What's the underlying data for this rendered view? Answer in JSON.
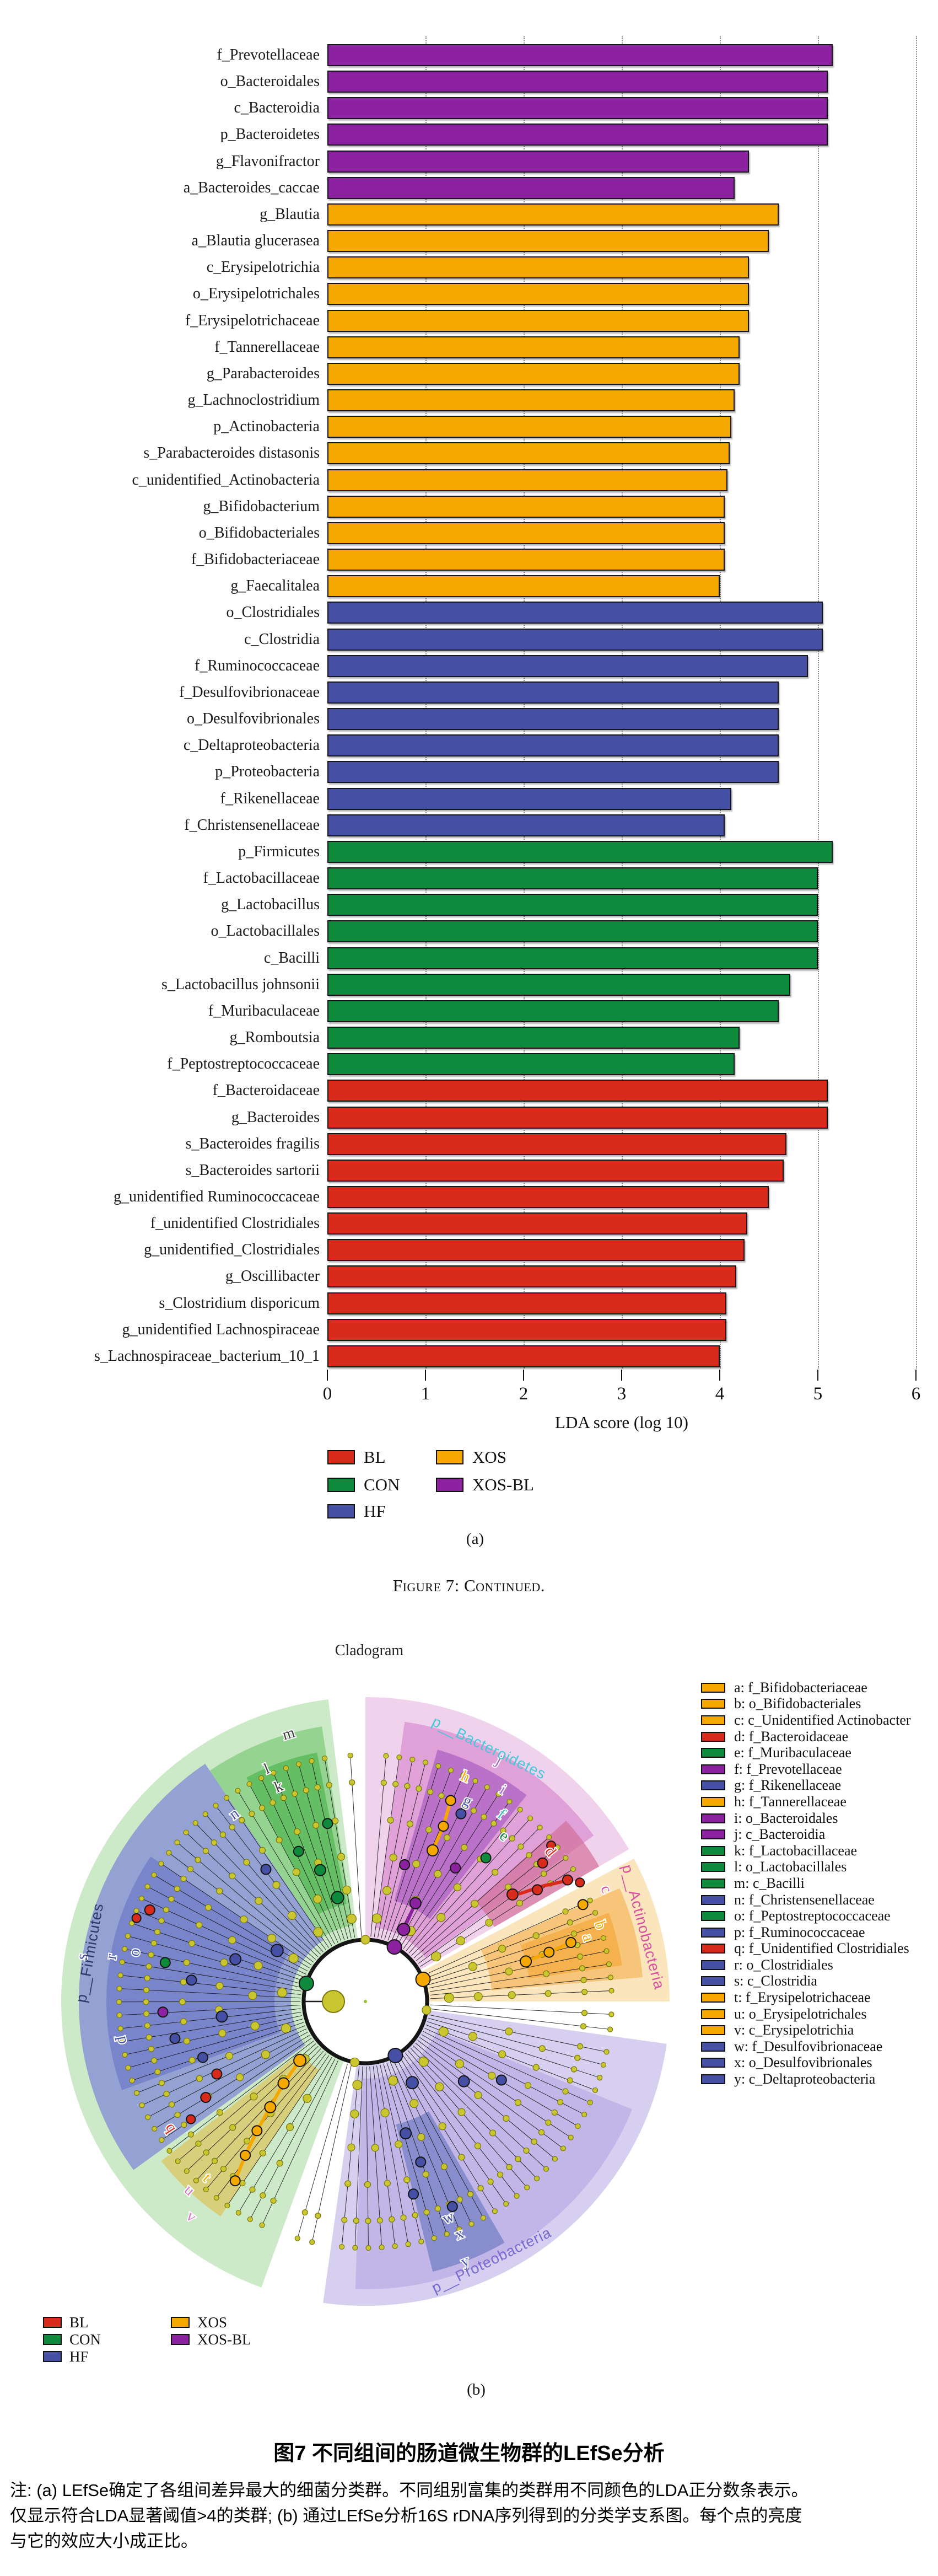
{
  "figure": {
    "panel_a_label": "(a)",
    "panel_b_label": "(b)",
    "continued_caption": "Figure 7: Continued.",
    "caption_zh": "图7 不同组间的肠道微生物群的LEfSe分析",
    "note_lines": [
      "注: (a) LEfSe确定了各组间差异最大的细菌分类群。不同组别富集的类群用不同颜色的LDA正分数条表示。",
      "仅显示符合LDA显著阈值>4的类群; (b) 通过LEfSe分析16S  rDNA序列得到的分类学支系图。每个点的亮度",
      "与它的效应大小成正比。"
    ]
  },
  "chart_data": {
    "type": "bar",
    "orientation": "horizontal",
    "title": "",
    "xlabel": "LDA score (log 10)",
    "xlim": [
      0,
      6
    ],
    "xticks": [
      0,
      1,
      2,
      3,
      4,
      5,
      6
    ],
    "grid": "dotted-vertical",
    "legend_position": "bottom-left",
    "groups": [
      {
        "name": "BL",
        "color": "#d92b1c"
      },
      {
        "name": "CON",
        "color": "#0e8a3c"
      },
      {
        "name": "HF",
        "color": "#4550a5"
      },
      {
        "name": "XOS",
        "color": "#f5a800"
      },
      {
        "name": "XOS-BL",
        "color": "#8c22a0"
      }
    ],
    "bars": [
      {
        "label": "f_Prevotellaceae",
        "value": 5.15,
        "group": "XOS-BL"
      },
      {
        "label": "o_Bacteroidales",
        "value": 5.1,
        "group": "XOS-BL"
      },
      {
        "label": "c_Bacteroidia",
        "value": 5.1,
        "group": "XOS-BL"
      },
      {
        "label": "p_Bacteroidetes",
        "value": 5.1,
        "group": "XOS-BL"
      },
      {
        "label": "g_Flavonifractor",
        "value": 4.3,
        "group": "XOS-BL"
      },
      {
        "label": "a_Bacteroides_caccae",
        "value": 4.15,
        "group": "XOS-BL"
      },
      {
        "label": "g_Blautia",
        "value": 4.6,
        "group": "XOS"
      },
      {
        "label": "a_Blautia glucerasea",
        "value": 4.5,
        "group": "XOS"
      },
      {
        "label": "c_Erysipelotrichia",
        "value": 4.3,
        "group": "XOS"
      },
      {
        "label": "o_Erysipelotrichales",
        "value": 4.3,
        "group": "XOS"
      },
      {
        "label": "f_Erysipelotrichaceae",
        "value": 4.3,
        "group": "XOS"
      },
      {
        "label": "f_Tannerellaceae",
        "value": 4.2,
        "group": "XOS"
      },
      {
        "label": "g_Parabacteroides",
        "value": 4.2,
        "group": "XOS"
      },
      {
        "label": "g_Lachnoclostridium",
        "value": 4.15,
        "group": "XOS"
      },
      {
        "label": "p_Actinobacteria",
        "value": 4.12,
        "group": "XOS"
      },
      {
        "label": "s_Parabacteroides distasonis",
        "value": 4.1,
        "group": "XOS"
      },
      {
        "label": "c_unidentified_Actinobacteria",
        "value": 4.08,
        "group": "XOS"
      },
      {
        "label": "g_Bifidobacterium",
        "value": 4.05,
        "group": "XOS"
      },
      {
        "label": "o_Bifidobacteriales",
        "value": 4.05,
        "group": "XOS"
      },
      {
        "label": "f_Bifidobacteriaceae",
        "value": 4.05,
        "group": "XOS"
      },
      {
        "label": "g_Faecalitalea",
        "value": 4.0,
        "group": "XOS"
      },
      {
        "label": "o_Clostridiales",
        "value": 5.05,
        "group": "HF"
      },
      {
        "label": "c_Clostridia",
        "value": 5.05,
        "group": "HF"
      },
      {
        "label": "f_Ruminococcaceae",
        "value": 4.9,
        "group": "HF"
      },
      {
        "label": "f_Desulfovibrionaceae",
        "value": 4.6,
        "group": "HF"
      },
      {
        "label": "o_Desulfovibrionales",
        "value": 4.6,
        "group": "HF"
      },
      {
        "label": "c_Deltaproteobacteria",
        "value": 4.6,
        "group": "HF"
      },
      {
        "label": "p_Proteobacteria",
        "value": 4.6,
        "group": "HF"
      },
      {
        "label": "f_Rikenellaceae",
        "value": 4.12,
        "group": "HF"
      },
      {
        "label": "f_Christensenellaceae",
        "value": 4.05,
        "group": "HF"
      },
      {
        "label": "p_Firmicutes",
        "value": 5.15,
        "group": "CON"
      },
      {
        "label": "f_Lactobacillaceae",
        "value": 5.0,
        "group": "CON"
      },
      {
        "label": "g_Lactobacillus",
        "value": 5.0,
        "group": "CON"
      },
      {
        "label": "o_Lactobacillales",
        "value": 5.0,
        "group": "CON"
      },
      {
        "label": "c_Bacilli",
        "value": 5.0,
        "group": "CON"
      },
      {
        "label": "s_Lactobacillus johnsonii",
        "value": 4.72,
        "group": "CON"
      },
      {
        "label": "f_Muribaculaceae",
        "value": 4.6,
        "group": "CON"
      },
      {
        "label": "g_Romboutsia",
        "value": 4.2,
        "group": "CON"
      },
      {
        "label": "f_Peptostreptococcaceae",
        "value": 4.15,
        "group": "CON"
      },
      {
        "label": "f_Bacteroidaceae",
        "value": 5.1,
        "group": "BL"
      },
      {
        "label": "g_Bacteroides",
        "value": 5.1,
        "group": "BL"
      },
      {
        "label": "s_Bacteroides fragilis",
        "value": 4.68,
        "group": "BL"
      },
      {
        "label": "s_Bacteroides sartorii",
        "value": 4.65,
        "group": "BL"
      },
      {
        "label": "g_unidentified Ruminococcaceae",
        "value": 4.5,
        "group": "BL"
      },
      {
        "label": "f_unidentified Clostridiales",
        "value": 4.28,
        "group": "BL"
      },
      {
        "label": "g_unidentified_Clostridiales",
        "value": 4.25,
        "group": "BL"
      },
      {
        "label": "g_Oscillibacter",
        "value": 4.17,
        "group": "BL"
      },
      {
        "label": "s_Clostridium disporicum",
        "value": 4.07,
        "group": "BL"
      },
      {
        "label": "g_unidentified Lachnospiraceae",
        "value": 4.07,
        "group": "BL"
      },
      {
        "label": "s_Lachnospiraceae_bacterium_10_1",
        "value": 4.0,
        "group": "BL"
      }
    ]
  },
  "cladogram": {
    "title": "Cladogram",
    "palette": {
      "red": "#d92b1c",
      "green": "#0e8a3c",
      "blue": "#4550a5",
      "orange": "#f5a800",
      "purple": "#8c22a0",
      "yellow": "#c9c62f",
      "yellow_border": "#7a770f"
    },
    "phyla": [
      {
        "name": "p__Firmicutes",
        "label_color": "#2b3a66",
        "label_angle": 170,
        "label_r": 508,
        "a0": 97,
        "a1": 250,
        "fill": "#cdeac8",
        "node_angle": 163,
        "node_color": "green",
        "subs": [
          {
            "a0": 99,
            "a1": 124,
            "r0": 140,
            "r1": 505,
            "fill": "#8fd289",
            "op": 0.9
          },
          {
            "a0": 101,
            "a1": 118,
            "r0": 180,
            "r1": 460,
            "fill": "#57b857",
            "op": 0.8
          },
          {
            "a0": 124,
            "a1": 216,
            "r0": 135,
            "r1": 520,
            "fill": "#8d99d4",
            "op": 0.9
          },
          {
            "a0": 146,
            "a1": 200,
            "r0": 165,
            "r1": 470,
            "fill": "#6f7cc7",
            "op": 0.75
          },
          {
            "a0": 218,
            "a1": 236,
            "r0": 150,
            "r1": 470,
            "fill": "#d8ca6e",
            "op": 0.85
          }
        ]
      },
      {
        "name": "p__Bacteroidetes",
        "label_color": "#45c8d8",
        "label_angle": 64,
        "label_r": 512,
        "a0": 30,
        "a1": 90,
        "fill": "#f0d2ec",
        "node_angle": 62,
        "node_color": "purple",
        "subs": [
          {
            "a0": 36,
            "a1": 82,
            "r0": 135,
            "r1": 512,
            "fill": "#dd9bd6",
            "op": 0.9
          },
          {
            "a0": 52,
            "a1": 74,
            "r0": 190,
            "r1": 475,
            "fill": "#b066c6",
            "op": 0.8
          },
          {
            "a0": 30,
            "a1": 42,
            "r0": 270,
            "r1": 490,
            "fill": "#d16b95",
            "op": 0.65
          }
        ]
      },
      {
        "name": "p__Actinobacteria",
        "label_color": "#d84fa0",
        "label_angle": 15,
        "label_r": 522,
        "a0": 0,
        "a1": 28,
        "fill": "#fbe5bd",
        "node_angle": 21,
        "node_color": "orange",
        "subs": [
          {
            "a0": 5,
            "a1": 24,
            "r0": 230,
            "r1": 505,
            "fill": "#f6c171",
            "op": 0.9
          },
          {
            "a0": 8,
            "a1": 20,
            "r0": 300,
            "r1": 470,
            "fill": "#f2ab44",
            "op": 0.8
          }
        ]
      },
      {
        "name": "p__Proteobacteria",
        "label_color": "#7a6ad0",
        "label_angle": 296,
        "label_r": 522,
        "a0": 262,
        "a1": 352,
        "fill": "#d6cfef",
        "node_angle": 299,
        "node_color": "blue",
        "subs": [
          {
            "a0": 268,
            "a1": 338,
            "r0": 140,
            "r1": 522,
            "fill": "#bdb2e5",
            "op": 0.85
          },
          {
            "a0": 284,
            "a1": 300,
            "r0": 230,
            "r1": 505,
            "fill": "#7e86c8",
            "op": 0.85
          }
        ]
      }
    ],
    "gap_rays": [
      93.5,
      254,
      257.5,
      353.5,
      357
    ],
    "chains": [
      {
        "color": "#f5a800",
        "points": [
          [
            222,
            160
          ],
          [
            225,
            210
          ],
          [
            228,
            258
          ],
          [
            230,
            306
          ],
          [
            232,
            354
          ],
          [
            234,
            402
          ]
        ]
      },
      {
        "color": "#8c22a0",
        "points": [
          [
            62,
            148
          ],
          [
            63,
            200
          ]
        ]
      },
      {
        "color": "#f5a800",
        "points": [
          [
            66,
            300
          ],
          [
            66,
            348
          ],
          [
            67,
            396
          ]
        ]
      },
      {
        "color": "#d92b1c",
        "points": [
          [
            35,
            340
          ],
          [
            33,
            385
          ],
          [
            31,
            425
          ]
        ]
      },
      {
        "color": "#f5a800",
        "points": [
          [
            14,
            300
          ],
          [
            15,
            345
          ],
          [
            16,
            388
          ]
        ]
      }
    ],
    "nodes": [
      [
        163,
        112,
        "green",
        13
      ],
      [
        105,
        195,
        "green",
        11
      ],
      [
        109,
        252,
        "green",
        10
      ],
      [
        114,
        298,
        "green",
        9
      ],
      [
        102,
        330,
        "green",
        9
      ],
      [
        127,
        300,
        "blue",
        9
      ],
      [
        150,
        185,
        "blue",
        11
      ],
      [
        162,
        248,
        "blue",
        10
      ],
      [
        173,
        318,
        "blue",
        9
      ],
      [
        186,
        262,
        "blue",
        10
      ],
      [
        191,
        352,
        "blue",
        9
      ],
      [
        199,
        312,
        "blue",
        9
      ],
      [
        157,
        425,
        "red",
        9
      ],
      [
        160,
        442,
        "red",
        8
      ],
      [
        183,
        368,
        "purple",
        9
      ],
      [
        169,
        370,
        "green",
        9
      ],
      [
        206,
        300,
        "red",
        9
      ],
      [
        211,
        338,
        "red",
        9
      ],
      [
        214,
        382,
        "red",
        8
      ],
      [
        222,
        160,
        "orange",
        11
      ],
      [
        225,
        210,
        "orange",
        10
      ],
      [
        228,
        258,
        "orange",
        10
      ],
      [
        230,
        306,
        "orange",
        9
      ],
      [
        232,
        354,
        "orange",
        9
      ],
      [
        234,
        402,
        "orange",
        9
      ],
      [
        62,
        112,
        "purple",
        13
      ],
      [
        62,
        148,
        "purple",
        11
      ],
      [
        63,
        200,
        "purple",
        10
      ],
      [
        74,
        258,
        "purple",
        9
      ],
      [
        56,
        292,
        "purple",
        9
      ],
      [
        66,
        300,
        "orange",
        10
      ],
      [
        66,
        348,
        "orange",
        9
      ],
      [
        67,
        396,
        "orange",
        9
      ],
      [
        63,
        382,
        "blue",
        9
      ],
      [
        50,
        340,
        "green",
        9
      ],
      [
        36,
        330,
        "red",
        10
      ],
      [
        33,
        372,
        "red",
        9
      ],
      [
        38,
        408,
        "red",
        9
      ],
      [
        31,
        428,
        "red",
        9
      ],
      [
        29,
        445,
        "red",
        8
      ],
      [
        40,
        440,
        "red",
        8
      ],
      [
        21,
        112,
        "orange",
        13
      ],
      [
        14,
        300,
        "orange",
        10
      ],
      [
        15,
        345,
        "orange",
        9
      ],
      [
        16,
        388,
        "orange",
        9
      ],
      [
        24,
        432,
        "orange",
        9
      ],
      [
        299,
        112,
        "blue",
        13
      ],
      [
        300,
        170,
        "blue",
        11
      ],
      [
        287,
        250,
        "blue",
        10
      ],
      [
        289,
        308,
        "blue",
        9
      ],
      [
        284,
        360,
        "blue",
        9
      ],
      [
        293,
        404,
        "blue",
        9
      ],
      [
        330,
        285,
        "blue",
        9
      ],
      [
        321,
        230,
        "blue",
        10
      ]
    ],
    "letters": [
      {
        "ch": "a",
        "angle": 16,
        "r": 420,
        "color": "#f5a800"
      },
      {
        "ch": "b",
        "angle": 18,
        "r": 448,
        "color": "#f5a800"
      },
      {
        "ch": "c",
        "angle": 25,
        "r": 482,
        "color": "#d84f9f"
      },
      {
        "ch": "d",
        "angle": 39,
        "r": 432,
        "color": "#d92b1c"
      },
      {
        "ch": "e",
        "angle": 50,
        "r": 392,
        "color": "#0e8a3c"
      },
      {
        "ch": "f",
        "angle": 54,
        "r": 420,
        "color": "#38b6c8"
      },
      {
        "ch": "g",
        "angle": 63,
        "r": 408,
        "color": "#4550a5"
      },
      {
        "ch": "h",
        "angle": 66,
        "r": 446,
        "color": "#f5a800"
      },
      {
        "ch": "i",
        "angle": 57,
        "r": 458,
        "color": "#a364c9"
      },
      {
        "ch": "j",
        "angle": 61,
        "r": 500,
        "color": "#a364c9"
      },
      {
        "ch": "k",
        "angle": 112,
        "r": 420,
        "color": "#3c3c3c"
      },
      {
        "ch": "l",
        "angle": 113,
        "r": 458,
        "color": "#3c3c3c"
      },
      {
        "ch": "m",
        "angle": 106,
        "r": 505,
        "color": "#3c3c3c"
      },
      {
        "ch": "n",
        "angle": 125,
        "r": 415,
        "color": "#4550a5"
      },
      {
        "ch": "o",
        "angle": 168,
        "r": 428,
        "color": "#4550a5"
      },
      {
        "ch": "p",
        "angle": 189,
        "r": 445,
        "color": "#4550a5"
      },
      {
        "ch": "q",
        "angle": 213,
        "r": 420,
        "color": "#d92b1c"
      },
      {
        "ch": "r",
        "angle": 170,
        "r": 468,
        "color": "#4550a5"
      },
      {
        "ch": "s",
        "angle": 171,
        "r": 520,
        "color": "#4550a5"
      },
      {
        "ch": "t",
        "angle": 228,
        "r": 430,
        "color": "#f5a800"
      },
      {
        "ch": "u",
        "angle": 227,
        "r": 468,
        "color": "#d878c8"
      },
      {
        "ch": "v",
        "angle": 231,
        "r": 502,
        "color": "#d878c8"
      },
      {
        "ch": "w",
        "angle": 291,
        "r": 420,
        "color": "#4550a5"
      },
      {
        "ch": "x",
        "angle": 292,
        "r": 455,
        "color": "#4550a5"
      },
      {
        "ch": "y",
        "angle": 291,
        "r": 505,
        "color": "#4550a5"
      }
    ],
    "legend": [
      {
        "key": "a",
        "taxon": "f_Bifidobacteriaceae",
        "group": "XOS"
      },
      {
        "key": "b",
        "taxon": "o_Bifidobacteriales",
        "group": "XOS"
      },
      {
        "key": "c",
        "taxon": "c_Unidentified Actinobacter",
        "group": "XOS"
      },
      {
        "key": "d",
        "taxon": "f_Bacteroidaceae",
        "group": "BL"
      },
      {
        "key": "e",
        "taxon": "f_Muribaculaceae",
        "group": "CON"
      },
      {
        "key": "f",
        "taxon": "f_Prevotellaceae",
        "group": "XOS-BL"
      },
      {
        "key": "g",
        "taxon": "f_Rikenellaceae",
        "group": "HF"
      },
      {
        "key": "h",
        "taxon": "f_Tannerellaceae",
        "group": "XOS"
      },
      {
        "key": "i",
        "taxon": "o_Bacteroidales",
        "group": "XOS-BL"
      },
      {
        "key": "j",
        "taxon": "c_Bacteroidia",
        "group": "XOS-BL"
      },
      {
        "key": "k",
        "taxon": "f_Lactobacillaceae",
        "group": "CON"
      },
      {
        "key": "l",
        "taxon": "o_Lactobacillales",
        "group": "CON"
      },
      {
        "key": "m",
        "taxon": "c_Bacilli",
        "group": "CON"
      },
      {
        "key": "n",
        "taxon": "f_Christensenellaceae",
        "group": "HF"
      },
      {
        "key": "o",
        "taxon": "f_Peptostreptococcaceae",
        "group": "CON"
      },
      {
        "key": "p",
        "taxon": "f_Ruminococcaceae",
        "group": "HF"
      },
      {
        "key": "q",
        "taxon": "f_Unidentified Clostridiales",
        "group": "BL"
      },
      {
        "key": "r",
        "taxon": "o_Clostridiales",
        "group": "HF"
      },
      {
        "key": "s",
        "taxon": "c_Clostridia",
        "group": "HF"
      },
      {
        "key": "t",
        "taxon": "f_Erysipelotrichaceae",
        "group": "XOS"
      },
      {
        "key": "u",
        "taxon": "o_Erysipelotrichales",
        "group": "XOS"
      },
      {
        "key": "v",
        "taxon": "c_Erysipelotrichia",
        "group": "XOS"
      },
      {
        "key": "w",
        "taxon": "f_Desulfovibrionaceae",
        "group": "HF"
      },
      {
        "key": "x",
        "taxon": "o_Desulfovibrionales",
        "group": "HF"
      },
      {
        "key": "y",
        "taxon": "c_Deltaproteobacteria",
        "group": "HF"
      }
    ]
  }
}
